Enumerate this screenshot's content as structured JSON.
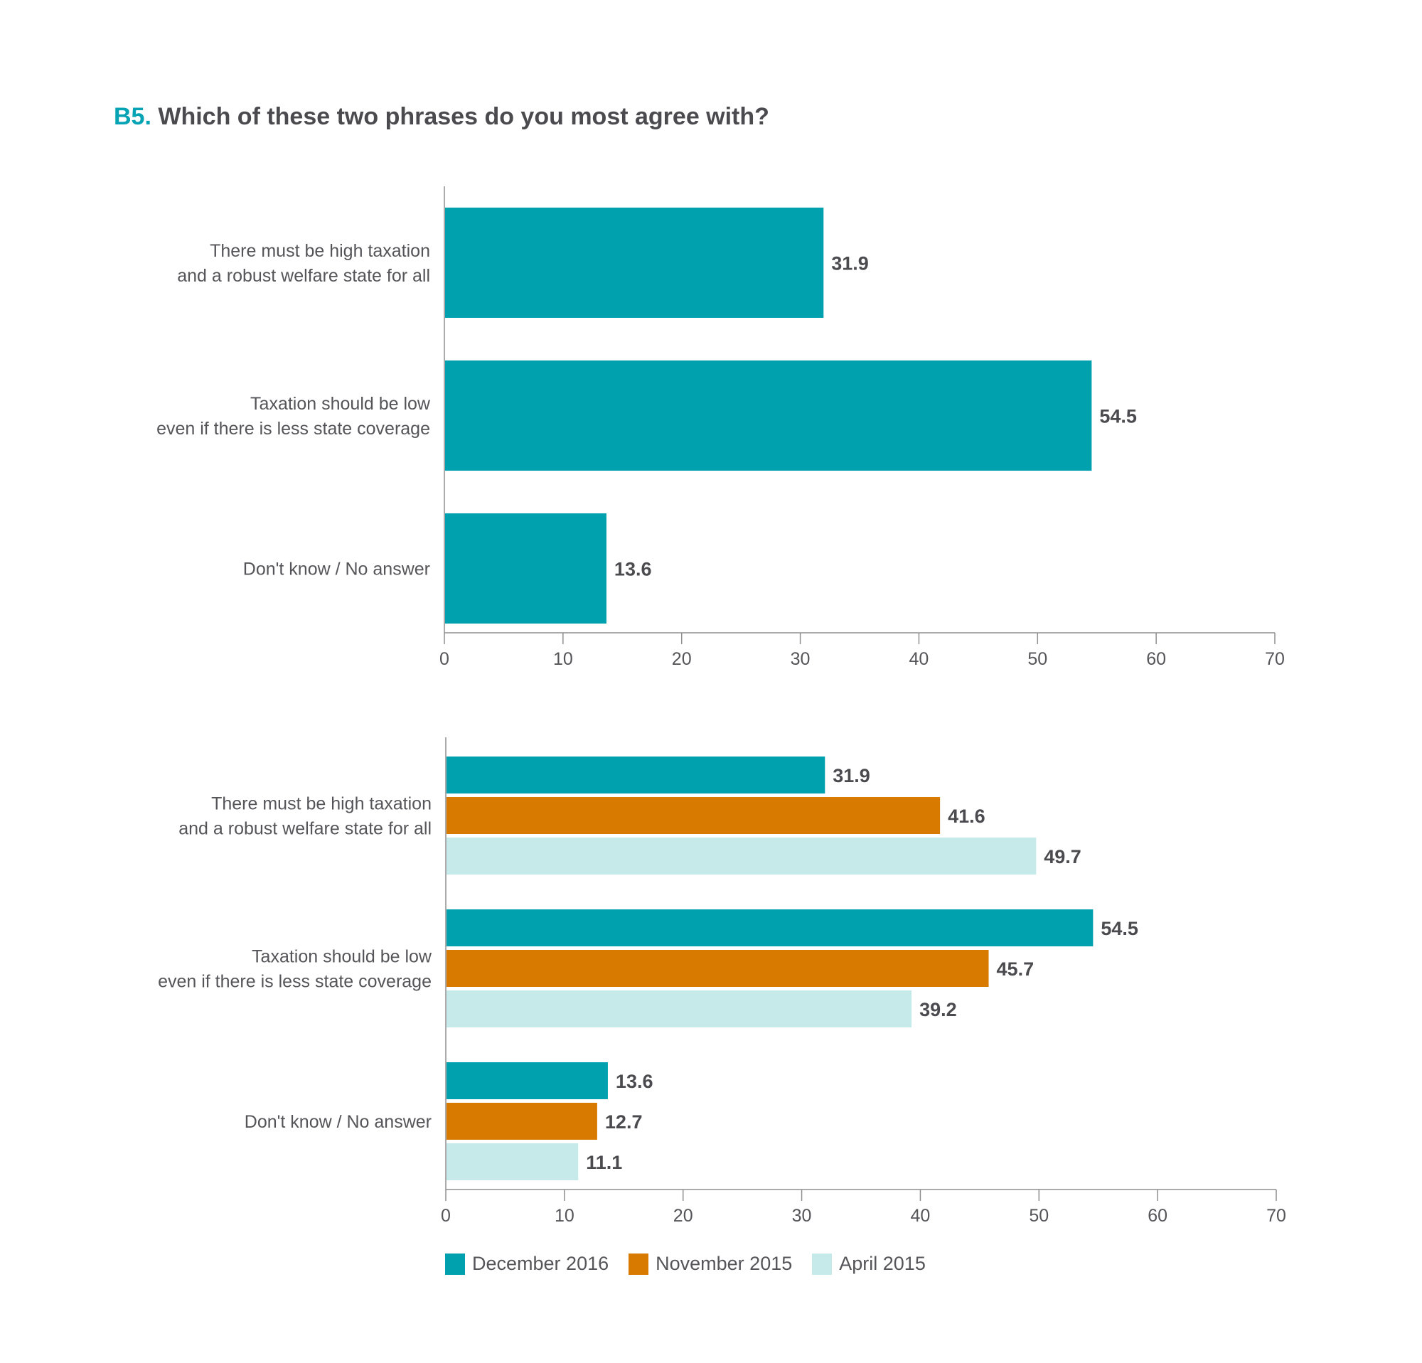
{
  "header": {
    "question_id": "B5.",
    "question": "Which of these two phrases do you most agree with?"
  },
  "colors": {
    "december_2016": "#00a1af",
    "november_2015": "#d87a00",
    "april_2015": "#c6eaea",
    "accent": "#06a3b4"
  },
  "chart_data": [
    {
      "type": "bar",
      "orientation": "horizontal",
      "categories": [
        "There must be high taxation\nand a robust welfare state for all",
        "Taxation should be low\neven if there is less state coverage",
        "Don't know / No answer"
      ],
      "series": [
        {
          "values": [
            31.9,
            54.5,
            13.6
          ],
          "color": "#00a1af"
        }
      ],
      "data_labels": [
        "31.9",
        "54.5",
        "13.6"
      ],
      "xlim": [
        0,
        70
      ],
      "xticks": [
        "0",
        "10",
        "20",
        "30",
        "40",
        "50",
        "60",
        "70"
      ],
      "grid": false
    },
    {
      "type": "bar",
      "orientation": "horizontal",
      "categories": [
        "There must be high taxation\nand a robust welfare state for all",
        "Taxation should be low\neven if there is less state coverage",
        "Don't know / No answer"
      ],
      "series": [
        {
          "name": "December 2016",
          "values": [
            31.9,
            54.5,
            13.6
          ],
          "color": "#00a1af"
        },
        {
          "name": "November 2015",
          "values": [
            41.6,
            45.7,
            12.7
          ],
          "color": "#d87a00"
        },
        {
          "name": "April 2015",
          "values": [
            49.7,
            39.2,
            11.1
          ],
          "color": "#c6eaea"
        }
      ],
      "data_labels": [
        [
          "31.9",
          "54.5",
          "13.6"
        ],
        [
          "41.6",
          "45.7",
          "12.7"
        ],
        [
          "49.7",
          "39.2",
          "11.1"
        ]
      ],
      "xlim": [
        0,
        70
      ],
      "xticks": [
        "0",
        "10",
        "20",
        "30",
        "40",
        "50",
        "60",
        "70"
      ],
      "grid": false,
      "legend": "bottom"
    }
  ]
}
